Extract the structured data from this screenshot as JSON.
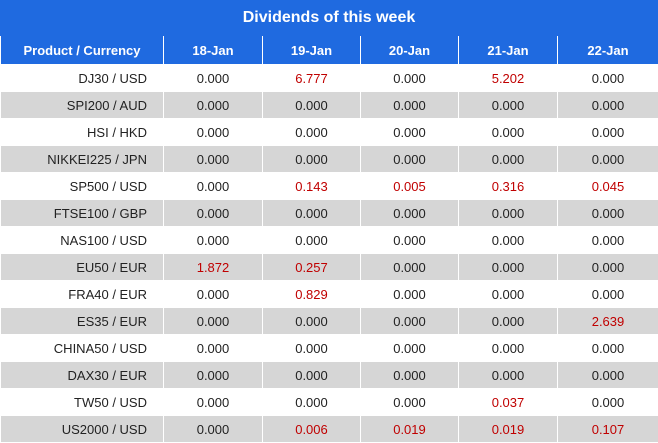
{
  "header": {
    "title": "Dividends of this week"
  },
  "table": {
    "columns": [
      "Product / Currency",
      "18-Jan",
      "19-Jan",
      "20-Jan",
      "21-Jan",
      "22-Jan"
    ],
    "rows": [
      [
        "DJ30 / USD",
        "0.000",
        "6.777",
        "0.000",
        "5.202",
        "0.000"
      ],
      [
        "SPI200 / AUD",
        "0.000",
        "0.000",
        "0.000",
        "0.000",
        "0.000"
      ],
      [
        "HSI / HKD",
        "0.000",
        "0.000",
        "0.000",
        "0.000",
        "0.000"
      ],
      [
        "NIKKEI225 / JPN",
        "0.000",
        "0.000",
        "0.000",
        "0.000",
        "0.000"
      ],
      [
        "SP500 / USD",
        "0.000",
        "0.143",
        "0.005",
        "0.316",
        "0.045"
      ],
      [
        "FTSE100 / GBP",
        "0.000",
        "0.000",
        "0.000",
        "0.000",
        "0.000"
      ],
      [
        "NAS100 / USD",
        "0.000",
        "0.000",
        "0.000",
        "0.000",
        "0.000"
      ],
      [
        "EU50 / EUR",
        "1.872",
        "0.257",
        "0.000",
        "0.000",
        "0.000"
      ],
      [
        "FRA40 / EUR",
        "0.000",
        "0.829",
        "0.000",
        "0.000",
        "0.000"
      ],
      [
        "ES35 / EUR",
        "0.000",
        "0.000",
        "0.000",
        "0.000",
        "2.639"
      ],
      [
        "CHINA50 / USD",
        "0.000",
        "0.000",
        "0.000",
        "0.000",
        "0.000"
      ],
      [
        "DAX30 / EUR",
        "0.000",
        "0.000",
        "0.000",
        "0.000",
        "0.000"
      ],
      [
        "TW50 / USD",
        "0.000",
        "0.000",
        "0.000",
        "0.037",
        "0.000"
      ],
      [
        "US2000 / USD",
        "0.000",
        "0.006",
        "0.019",
        "0.019",
        "0.107"
      ]
    ]
  }
}
